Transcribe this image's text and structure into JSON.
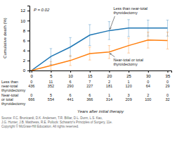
{
  "chart_data": {
    "type": "line",
    "xlabel": "Years after initial therapy",
    "ylabel": "Cumulative death (%)",
    "x": [
      0,
      5,
      10,
      15,
      20,
      25,
      30,
      35
    ],
    "xlim": [
      -0.5,
      36
    ],
    "xticks": [
      0,
      5,
      10,
      15,
      20,
      25,
      30,
      35
    ],
    "ylim": [
      0,
      13
    ],
    "yticks": [
      0,
      2,
      4,
      6,
      8,
      10,
      12
    ],
    "grid": false,
    "series": [
      {
        "name": "Less than near-total\nthyroidectomy",
        "values": [
          0,
          2.8,
          4.7,
          7.1,
          8.0,
          8.5,
          8.5,
          8.5
        ],
        "lower": [
          0,
          1.2,
          2.8,
          5.0,
          6.2,
          6.8,
          6.9,
          6.9
        ],
        "upper": [
          0,
          4.4,
          6.6,
          9.2,
          9.8,
          10.2,
          10.1,
          10.1
        ]
      },
      {
        "name": "Near-total or total\nthyroidectomy",
        "values": [
          0,
          1.0,
          2.0,
          3.4,
          3.7,
          5.0,
          6.1,
          6.0
        ],
        "lower": [
          0,
          0.2,
          1.0,
          2.1,
          2.4,
          3.5,
          4.5,
          4.3
        ],
        "upper": [
          0,
          1.8,
          3.0,
          4.7,
          5.0,
          6.5,
          7.7,
          7.7
        ]
      }
    ],
    "annotations": [
      {
        "text": "P = 0.02"
      }
    ],
    "table": [
      {
        "label": "Less than\nnear-total\nthyroidectomy",
        "events": [
          0,
          11,
          6,
          7,
          2,
          1,
          0,
          0
        ],
        "at_risk": [
          436,
          352,
          290,
          227,
          181,
          120,
          64,
          29
        ]
      },
      {
        "label": "Near-total\nor total\nthyroidectomy",
        "events": [
          0,
          5,
          6,
          6,
          1,
          3,
          2,
          0
        ],
        "at_risk": [
          666,
          554,
          441,
          366,
          314,
          209,
          100,
          32
        ]
      }
    ],
    "source": "Source: F.C. Brunicardi, D.K. Andersen, T.R. Billiar, D.L. Dunn, L.S. Kao,\nJ.G. Hunter, J.B. Matthews, R.E. Pollock: Schwartz's Principles of Surgery, 11e.\nCopyright © McGraw-Hill Education. All rights reserved."
  }
}
